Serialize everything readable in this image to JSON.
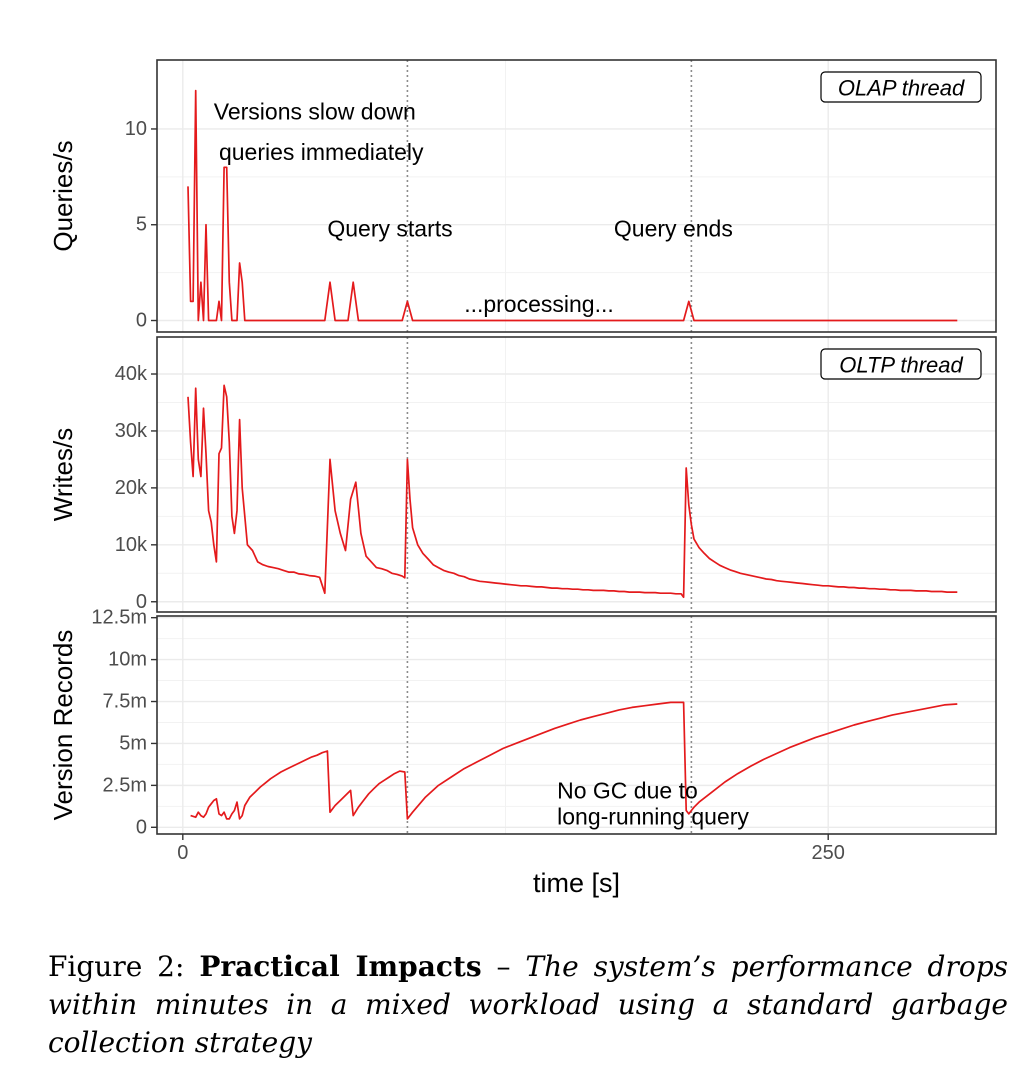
{
  "chart_data": {
    "type": "line",
    "x_axis": {
      "label": "time [s]",
      "ticks": [
        0,
        250
      ],
      "range": [
        -10,
        315
      ]
    },
    "line_color": "#e41a1c",
    "panels": [
      {
        "id": "olap",
        "ylabel": "Queries/s",
        "tag": "OLAP thread",
        "ylim": [
          -0.6,
          13.6
        ],
        "yticks": [
          0,
          5,
          10
        ],
        "ytick_labels": [
          "0",
          "5",
          "10"
        ],
        "series": {
          "x": [
            2,
            3,
            4,
            5,
            6,
            7,
            8,
            9,
            10,
            11,
            12,
            13,
            14,
            15,
            16,
            17,
            18,
            19,
            20,
            21,
            22,
            23,
            24,
            25,
            55,
            57,
            59,
            64,
            66,
            68,
            85,
            87,
            89,
            194,
            196,
            198,
            300
          ],
          "y": [
            7,
            1,
            1,
            12,
            0,
            2,
            0,
            5,
            0,
            0,
            0,
            0,
            1,
            0,
            8,
            8,
            2,
            0,
            0,
            0,
            3,
            2,
            0,
            0,
            0,
            2,
            0,
            0,
            2,
            0,
            0,
            1,
            0,
            0,
            1,
            0,
            0
          ]
        },
        "annotations": [
          {
            "text": "Versions slow down",
            "x": 12,
            "y": 10.9
          },
          {
            "text": "queries immediately",
            "x": 14,
            "y": 8.8
          },
          {
            "text": "Query starts",
            "x": 56,
            "y": 4.8
          },
          {
            "text": "Query ends",
            "x": 167,
            "y": 4.8
          },
          {
            "text": "...processing...",
            "x": 109,
            "y": 0.85
          }
        ]
      },
      {
        "id": "oltp",
        "ylabel": "Writes/s",
        "tag": "OLTP thread",
        "ylim": [
          -1800,
          46500
        ],
        "yticks": [
          0,
          10000,
          20000,
          30000,
          40000
        ],
        "ytick_labels": [
          "0",
          "10k",
          "20k",
          "30k",
          "40k"
        ],
        "series": {
          "x": [
            2,
            3,
            4,
            5,
            6,
            7,
            8,
            9,
            10,
            11,
            12,
            13,
            14,
            15,
            16,
            17,
            18,
            19,
            20,
            21,
            22,
            23,
            25,
            27,
            29,
            31,
            33,
            35,
            37,
            39,
            41,
            43,
            45,
            47,
            49,
            51,
            53,
            55,
            57,
            59,
            61,
            63,
            65,
            67,
            69,
            71,
            73,
            75,
            77,
            79,
            81,
            83,
            85,
            86,
            87,
            88,
            89,
            91,
            93,
            95,
            97,
            99,
            101,
            103,
            105,
            107,
            109,
            111,
            113,
            115,
            117,
            119,
            121,
            123,
            125,
            127,
            129,
            131,
            133,
            135,
            137,
            139,
            141,
            143,
            145,
            147,
            149,
            151,
            153,
            155,
            157,
            159,
            161,
            163,
            165,
            167,
            169,
            171,
            173,
            175,
            177,
            179,
            181,
            183,
            185,
            187,
            189,
            191,
            193,
            194,
            195,
            196,
            197,
            198,
            200,
            202,
            204,
            206,
            208,
            210,
            212,
            214,
            216,
            218,
            220,
            222,
            224,
            226,
            228,
            230,
            232,
            234,
            236,
            238,
            240,
            242,
            244,
            246,
            248,
            250,
            252,
            254,
            256,
            258,
            260,
            262,
            264,
            266,
            268,
            270,
            272,
            274,
            276,
            278,
            280,
            282,
            284,
            286,
            288,
            290,
            292,
            294,
            296,
            298,
            300
          ],
          "y": [
            36000,
            28000,
            22000,
            37500,
            25000,
            22000,
            34000,
            26000,
            16000,
            14000,
            10000,
            7000,
            26000,
            27000,
            38000,
            36000,
            28000,
            15000,
            12000,
            16000,
            32000,
            20000,
            10000,
            9000,
            7000,
            6500,
            6200,
            6000,
            5800,
            5500,
            5200,
            5200,
            4900,
            4800,
            4600,
            4500,
            4300,
            1500,
            25000,
            16000,
            12000,
            9000,
            18000,
            21000,
            12000,
            8000,
            7000,
            6000,
            5800,
            5500,
            5000,
            4800,
            4500,
            4200,
            25000,
            18000,
            13000,
            10000,
            8500,
            7500,
            6500,
            6000,
            5500,
            5200,
            5000,
            4600,
            4400,
            4000,
            3800,
            3600,
            3500,
            3400,
            3300,
            3200,
            3100,
            3000,
            2900,
            2800,
            2800,
            2700,
            2600,
            2600,
            2500,
            2400,
            2400,
            2300,
            2300,
            2200,
            2200,
            2100,
            2100,
            2000,
            2000,
            2000,
            1900,
            1900,
            1800,
            1800,
            1700,
            1700,
            1700,
            1600,
            1600,
            1600,
            1500,
            1500,
            1500,
            1400,
            1400,
            800,
            23500,
            17000,
            13500,
            11000,
            9500,
            8500,
            7600,
            7000,
            6400,
            6000,
            5600,
            5300,
            5000,
            4800,
            4600,
            4400,
            4200,
            4000,
            3900,
            3700,
            3600,
            3500,
            3400,
            3300,
            3200,
            3100,
            3000,
            2900,
            2800,
            2800,
            2700,
            2600,
            2600,
            2500,
            2500,
            2400,
            2400,
            2300,
            2300,
            2200,
            2200,
            2100,
            2100,
            2000,
            2000,
            2000,
            1900,
            1900,
            1900,
            1800,
            1800,
            1800,
            1700,
            1700,
            1700
          ]
        }
      },
      {
        "id": "versions",
        "ylabel": "Version Records",
        "tag": "",
        "ylim": [
          -0.4,
          12.6
        ],
        "yticks": [
          0,
          2.5,
          5,
          7.5,
          10,
          12.5
        ],
        "ytick_labels": [
          "0",
          "2.5m",
          "5m",
          "7.5m",
          "10m",
          "12.5m"
        ],
        "series": {
          "x": [
            3,
            5,
            6,
            7,
            8,
            9,
            10,
            11,
            12,
            13,
            14,
            15,
            16,
            17,
            18,
            19,
            20,
            21,
            22,
            23,
            24,
            26,
            28,
            30,
            32,
            34,
            36,
            38,
            40,
            42,
            44,
            46,
            48,
            50,
            52,
            54,
            56,
            57,
            59,
            61,
            63,
            65,
            66,
            68,
            70,
            72,
            74,
            76,
            78,
            80,
            82,
            84,
            86,
            87,
            89,
            94,
            99,
            104,
            109,
            114,
            119,
            124,
            129,
            134,
            139,
            144,
            149,
            154,
            159,
            164,
            169,
            174,
            179,
            184,
            189,
            194,
            195,
            196,
            197,
            198,
            200,
            205,
            210,
            215,
            220,
            225,
            230,
            235,
            240,
            245,
            250,
            255,
            260,
            265,
            270,
            275,
            280,
            285,
            290,
            295,
            300
          ],
          "y": [
            0.7,
            0.6,
            0.9,
            0.7,
            0.6,
            0.8,
            1.2,
            1.4,
            1.6,
            1.7,
            0.8,
            0.7,
            0.9,
            0.5,
            0.5,
            0.8,
            1.0,
            1.5,
            0.5,
            0.7,
            1.3,
            1.8,
            2.1,
            2.4,
            2.65,
            2.9,
            3.1,
            3.3,
            3.45,
            3.6,
            3.75,
            3.9,
            4.05,
            4.2,
            4.3,
            4.45,
            4.55,
            0.9,
            1.3,
            1.6,
            1.9,
            2.2,
            0.7,
            1.2,
            1.6,
            2.0,
            2.3,
            2.6,
            2.8,
            3.0,
            3.2,
            3.35,
            3.3,
            0.5,
            0.9,
            1.8,
            2.5,
            3.0,
            3.5,
            3.9,
            4.3,
            4.7,
            5.0,
            5.3,
            5.6,
            5.9,
            6.15,
            6.4,
            6.6,
            6.8,
            7.0,
            7.15,
            7.25,
            7.35,
            7.45,
            7.45,
            1.0,
            0.8,
            1.0,
            1.2,
            1.5,
            2.1,
            2.7,
            3.2,
            3.65,
            4.05,
            4.4,
            4.75,
            5.05,
            5.35,
            5.6,
            5.85,
            6.1,
            6.3,
            6.5,
            6.7,
            6.85,
            7.0,
            7.15,
            7.3,
            7.35
          ]
        },
        "annotations": [
          {
            "text": "No GC due to",
            "x": 145,
            "y": 2.2
          },
          {
            "text": "long-running query",
            "x": 145,
            "y": 0.65
          }
        ]
      }
    ],
    "vlines": [
      87,
      197
    ]
  },
  "caption": {
    "prefix": "Figure 2: ",
    "bold": "Practical Impacts",
    "sep": " – ",
    "italic": "The system’s performance drops within minutes in a mixed workload using a standard garbage collection strategy"
  }
}
